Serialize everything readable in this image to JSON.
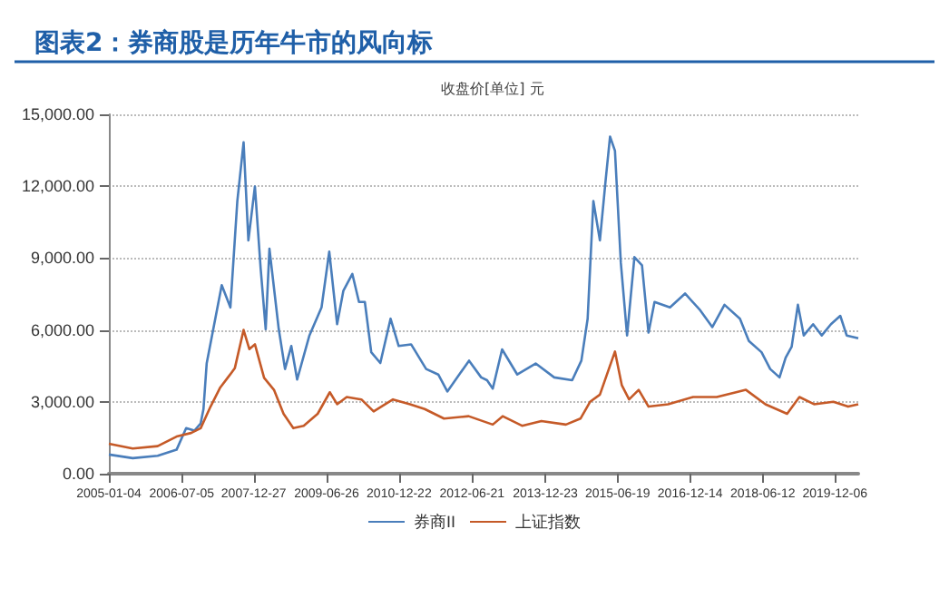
{
  "chart_data": {
    "type": "line",
    "title": "图表2：券商股是历年牛市的风向标",
    "ylabel": "收盘价[单位] 元",
    "xlim": [
      "2005-01-04",
      "2020-05-29"
    ],
    "xticks": [
      "2005-01-04",
      "2006-07-05",
      "2007-12-27",
      "2009-06-26",
      "2010-12-22",
      "2012-06-21",
      "2013-12-23",
      "2015-06-19",
      "2016-12-14",
      "2018-06-12",
      "2019-12-06"
    ],
    "ylim": [
      0,
      15000
    ],
    "yticks": [
      {
        "value": 0,
        "label": "0.00"
      },
      {
        "value": 3000,
        "label": "3,000.00"
      },
      {
        "value": 6000,
        "label": "6,000.00"
      },
      {
        "value": 9000,
        "label": "9,000.00"
      },
      {
        "value": 12000,
        "label": "12,000.00"
      },
      {
        "value": 15000,
        "label": "15,000.00"
      }
    ],
    "grid": "y",
    "legend": "bottom",
    "marker": "none",
    "line_style": "solid",
    "series": [
      {
        "name": "券商II",
        "color": "#4a7ebb",
        "x": [
          "2005-01-04",
          "2005-07-02",
          "2006-01-05",
          "2006-05-27",
          "2006-08-07",
          "2006-10-08",
          "2006-11-24",
          "2006-12-15",
          "2007-01-08",
          "2007-05-01",
          "2007-07-05",
          "2007-08-26",
          "2007-10-12",
          "2007-11-17",
          "2008-01-05",
          "2008-02-17",
          "2008-03-26",
          "2008-04-23",
          "2008-07-02",
          "2008-08-18",
          "2008-10-04",
          "2008-11-17",
          "2009-02-17",
          "2009-05-19",
          "2009-07-16",
          "2009-09-13",
          "2009-10-30",
          "2010-01-05",
          "2010-02-24",
          "2010-04-09",
          "2010-05-27",
          "2010-08-03",
          "2010-10-19",
          "2010-12-19",
          "2011-03-22",
          "2011-07-13",
          "2011-10-12",
          "2011-12-19",
          "2012-05-30",
          "2012-08-29",
          "2012-10-12",
          "2012-11-24",
          "2013-02-02",
          "2013-05-27",
          "2013-10-12",
          "2014-02-28",
          "2014-07-13",
          "2014-09-20",
          "2014-11-06",
          "2014-12-19",
          "2015-02-06",
          "2015-03-22",
          "2015-04-23",
          "2015-05-30",
          "2015-07-13",
          "2015-08-29",
          "2015-10-23",
          "2015-12-19",
          "2016-02-06",
          "2016-03-22",
          "2016-07-16",
          "2016-11-06",
          "2017-02-28",
          "2017-05-30",
          "2017-08-29",
          "2017-12-23",
          "2018-02-28",
          "2018-06-03",
          "2018-08-07",
          "2018-10-16",
          "2018-12-01",
          "2019-01-15",
          "2019-03-03",
          "2019-04-16",
          "2019-06-25",
          "2019-08-29",
          "2019-11-06",
          "2020-01-15",
          "2020-03-03",
          "2020-05-29"
        ],
        "values": [
          800,
          650,
          750,
          1000,
          1900,
          1800,
          2100,
          2700,
          4600,
          7870,
          6940,
          11380,
          13830,
          9740,
          11990,
          8570,
          6030,
          9390,
          6030,
          4370,
          5330,
          3930,
          5770,
          6940,
          9270,
          6240,
          7640,
          8340,
          7170,
          7170,
          5070,
          4620,
          6470,
          5330,
          5400,
          4370,
          4140,
          3430,
          4720,
          4020,
          3900,
          3550,
          5190,
          4140,
          4600,
          4020,
          3900,
          4720,
          6470,
          11380,
          9740,
          12310,
          14070,
          13480,
          8810,
          5770,
          9040,
          8700,
          5890,
          7170,
          6940,
          7520,
          6820,
          6120,
          7050,
          6470,
          5540,
          5070,
          4370,
          4020,
          4840,
          5300,
          7050,
          5770,
          6240,
          5770,
          6240,
          6590,
          5770,
          5650
        ]
      },
      {
        "name": "上证指数",
        "color": "#c55a28",
        "x": [
          "2005-01-04",
          "2005-07-02",
          "2006-01-05",
          "2006-05-27",
          "2006-09-13",
          "2006-11-24",
          "2007-02-06",
          "2007-04-20",
          "2007-06-14",
          "2007-08-07",
          "2007-10-12",
          "2007-11-24",
          "2008-01-05",
          "2008-03-14",
          "2008-05-27",
          "2008-08-07",
          "2008-10-19",
          "2009-01-05",
          "2009-04-20",
          "2009-07-20",
          "2009-09-13",
          "2009-11-24",
          "2010-03-14",
          "2010-06-14",
          "2010-11-06",
          "2011-03-14",
          "2011-07-02",
          "2011-11-24",
          "2012-05-27",
          "2012-11-24",
          "2013-02-06",
          "2013-07-02",
          "2013-11-24",
          "2014-05-27",
          "2014-09-13",
          "2014-11-24",
          "2015-02-06",
          "2015-05-30",
          "2015-07-20",
          "2015-09-13",
          "2015-11-24",
          "2016-02-06",
          "2016-07-02",
          "2017-01-05",
          "2017-07-02",
          "2017-11-24",
          "2018-02-06",
          "2018-07-02",
          "2018-12-12",
          "2019-03-14",
          "2019-07-02",
          "2019-11-24",
          "2020-03-14",
          "2020-05-29"
        ],
        "values": [
          1250,
          1050,
          1150,
          1550,
          1700,
          1900,
          2800,
          3600,
          4000,
          4400,
          6000,
          5200,
          5400,
          4000,
          3500,
          2500,
          1900,
          2000,
          2500,
          3400,
          2900,
          3200,
          3100,
          2600,
          3100,
          2900,
          2700,
          2300,
          2400,
          2050,
          2400,
          2000,
          2200,
          2050,
          2300,
          3000,
          3300,
          5100,
          3700,
          3100,
          3500,
          2800,
          2900,
          3200,
          3200,
          3400,
          3500,
          2900,
          2500,
          3200,
          2900,
          3000,
          2800,
          2900
        ]
      }
    ]
  }
}
